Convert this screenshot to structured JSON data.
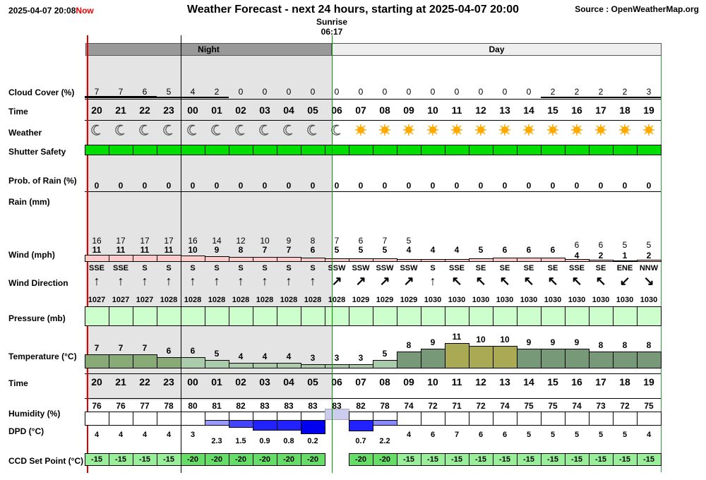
{
  "header": {
    "timestamp": "2025-04-07 20:08",
    "now": "Now",
    "title": "Weather Forecast - next 24 hours, starting at 2025-04-07 20:00",
    "source": "Source : OpenWeatherMap.org"
  },
  "sunrise": {
    "label": "Sunrise",
    "time": "06:17"
  },
  "bands": {
    "night": "Night",
    "day": "Day"
  },
  "labels": {
    "cloud": "Cloud Cover (%)",
    "time": "Time",
    "weather": "Weather",
    "shutter": "Shutter Safety",
    "rainprob": "Prob. of Rain (%)",
    "rain": "Rain (mm)",
    "wind": "Wind (mph)",
    "winddir": "Wind Direction",
    "pressure": "Pressure (mb)",
    "temp": "Temperature (°C)",
    "time2": "Time",
    "humidity": "Humidity (%)",
    "dpd": "DPD (°C)",
    "ccd": "CCD Set Point (°C)"
  },
  "hours": [
    "20",
    "21",
    "22",
    "23",
    "00",
    "01",
    "02",
    "03",
    "04",
    "05",
    "06",
    "07",
    "08",
    "09",
    "10",
    "11",
    "12",
    "13",
    "14",
    "15",
    "16",
    "17",
    "18",
    "19"
  ],
  "cloud": [
    "7",
    "7",
    "6",
    "5",
    "4",
    "2",
    "0",
    "0",
    "0",
    "0",
    "0",
    "0",
    "0",
    "0",
    "0",
    "0",
    "0",
    "0",
    "0",
    "2",
    "2",
    "2",
    "2",
    "3"
  ],
  "weather": [
    "moon",
    "moon",
    "moon",
    "moon",
    "moon",
    "moon",
    "moon",
    "moon",
    "moon",
    "moon",
    "moon",
    "sun",
    "sun",
    "sun",
    "sun",
    "sun",
    "sun",
    "sun",
    "sun",
    "sun",
    "sun",
    "sun",
    "sun",
    "sun"
  ],
  "rain_prob": [
    "0",
    "0",
    "0",
    "0",
    "0",
    "0",
    "0",
    "0",
    "0",
    "0",
    "0",
    "0",
    "0",
    "0",
    "0",
    "0",
    "0",
    "0",
    "0",
    "0",
    "0",
    "0",
    "0",
    "0"
  ],
  "gust": [
    "16",
    "17",
    "17",
    "17",
    "16",
    "14",
    "12",
    "10",
    "9",
    "8",
    "7",
    "6",
    "7",
    "5",
    "",
    "",
    "",
    "",
    "",
    "",
    "6",
    "6",
    "5",
    "5"
  ],
  "wind": [
    "11",
    "11",
    "11",
    "11",
    "10",
    "9",
    "8",
    "7",
    "7",
    "6",
    "5",
    "5",
    "5",
    "4",
    "4",
    "4",
    "5",
    "6",
    "6",
    "6",
    "4",
    "2",
    "1",
    "2"
  ],
  "wind_dir": [
    "SSE",
    "SSE",
    "S",
    "S",
    "S",
    "S",
    "S",
    "S",
    "S",
    "S",
    "SSW",
    "SSW",
    "SSW",
    "SSW",
    "S",
    "SSE",
    "SE",
    "SE",
    "SE",
    "SE",
    "SSE",
    "SE",
    "ENE",
    "NNW"
  ],
  "wind_arrow": [
    "↑",
    "↑",
    "↑",
    "↑",
    "↑",
    "↑",
    "↑",
    "↑",
    "↑",
    "↑",
    "↗",
    "↗",
    "↗",
    "↗",
    "↑",
    "↖",
    "↖",
    "↖",
    "↖",
    "↖",
    "↖",
    "↖",
    "↙",
    "↘"
  ],
  "pressure": [
    "1027",
    "1027",
    "1027",
    "1028",
    "1028",
    "1028",
    "1028",
    "1028",
    "1028",
    "1028",
    "1028",
    "1029",
    "1029",
    "1029",
    "1030",
    "1030",
    "1030",
    "1030",
    "1030",
    "1030",
    "1030",
    "1030",
    "1030",
    "1030"
  ],
  "temperature": [
    "7",
    "7",
    "7",
    "6",
    "6",
    "5",
    "4",
    "4",
    "4",
    "3",
    "3",
    "3",
    "5",
    "8",
    "9",
    "11",
    "10",
    "10",
    "9",
    "9",
    "9",
    "8",
    "8",
    "8"
  ],
  "humidity": [
    "76",
    "76",
    "77",
    "78",
    "80",
    "81",
    "82",
    "83",
    "83",
    "83",
    "83",
    "82",
    "78",
    "74",
    "72",
    "71",
    "72",
    "74",
    "75",
    "75",
    "74",
    "73",
    "72",
    "75"
  ],
  "dpd": [
    "4",
    "4",
    "4",
    "4",
    "3",
    "2.3",
    "1.5",
    "0.9",
    "0.8",
    "0.2",
    "",
    "0.7",
    "2.2",
    "4",
    "6",
    "7",
    "6",
    "6",
    "5",
    "5",
    "5",
    "5",
    "5",
    "4"
  ],
  "ccd": [
    "-15",
    "-15",
    "-15",
    "-15",
    "-20",
    "-20",
    "-20",
    "-20",
    "-20",
    "-20",
    "",
    "-20",
    "-20",
    "-15",
    "-15",
    "-15",
    "-15",
    "-15",
    "-15",
    "-15",
    "-15",
    "-15",
    "-15",
    "-15"
  ],
  "colors": {
    "now_line": "#e00000",
    "shutter": "#00dd00",
    "pressure": "#ccffcc",
    "ccd_15": "#99ee99",
    "ccd_20": "#66dd66",
    "wind_bar": "#ffcccc",
    "sun": "#ffaa00",
    "dpd_bar": "#3333ff"
  }
}
